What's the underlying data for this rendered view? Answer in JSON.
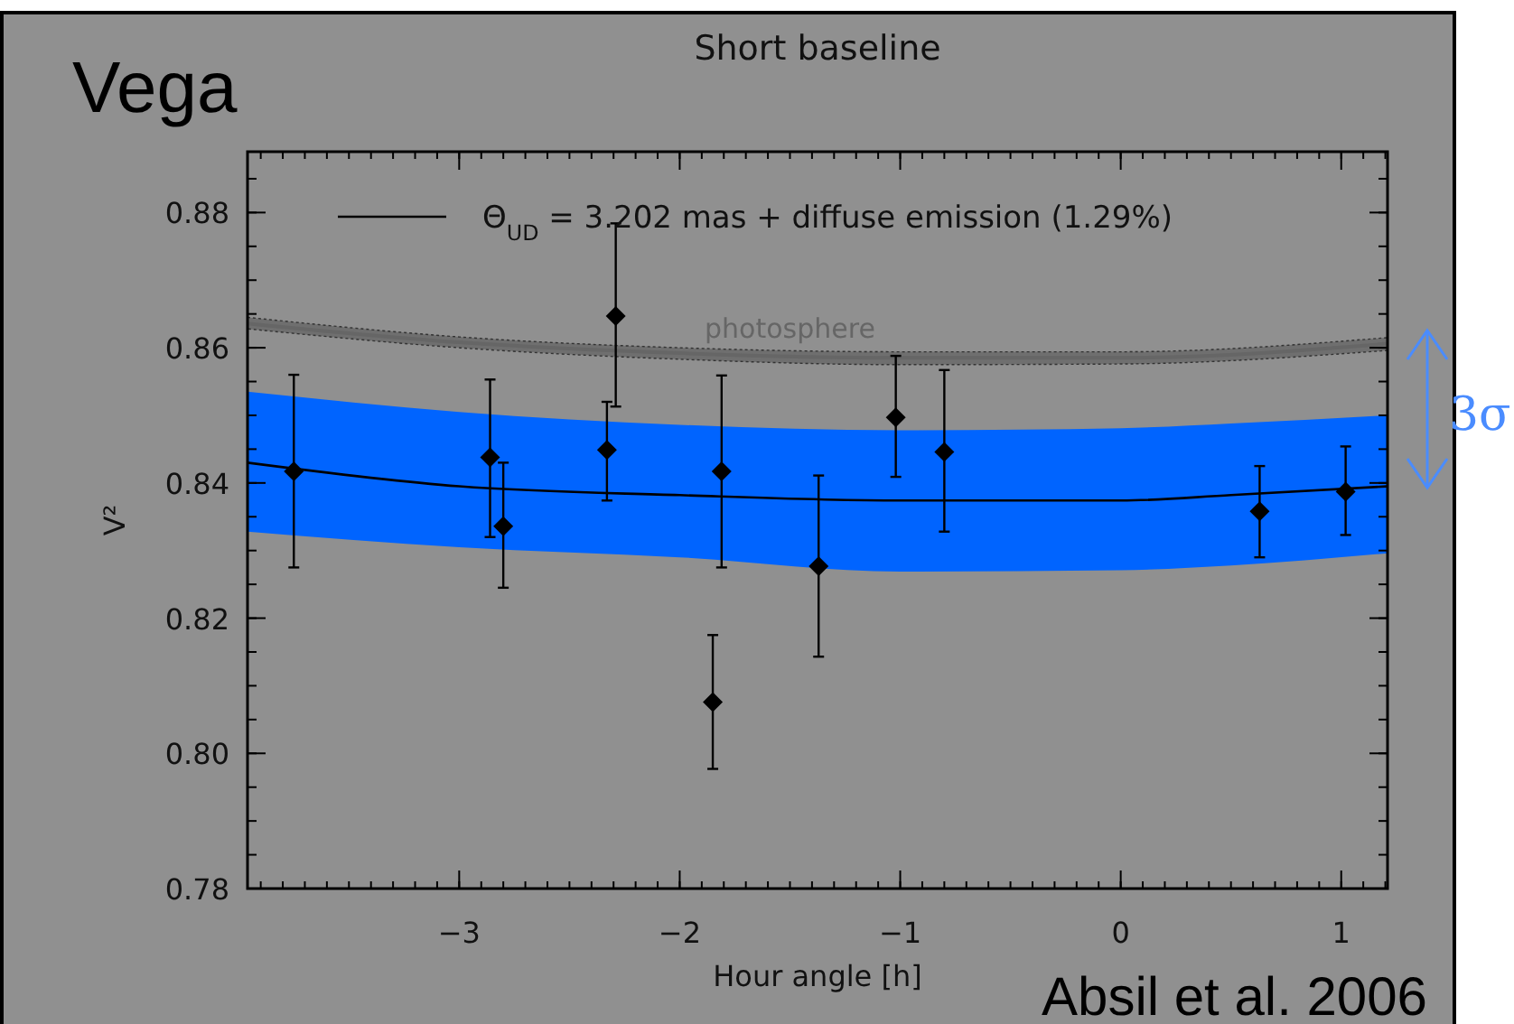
{
  "chart_data": {
    "type": "scatter",
    "title": "Short baseline",
    "xlabel": "Hour angle [h]",
    "ylabel": "V²",
    "xlim": [
      -3.96,
      1.21
    ],
    "ylim": [
      0.78,
      0.889
    ],
    "xticks": [
      {
        "value": -3,
        "label": "−3"
      },
      {
        "value": -2,
        "label": "−2"
      },
      {
        "value": -1,
        "label": "−1"
      },
      0,
      1
    ],
    "yticks": [
      {
        "value": 0.78,
        "label": "0.78"
      },
      {
        "value": 0.8,
        "label": "0.80"
      },
      {
        "value": 0.82,
        "label": "0.82"
      },
      {
        "value": 0.84,
        "label": "0.84"
      },
      {
        "value": 0.86,
        "label": "0.86"
      },
      {
        "value": 0.88,
        "label": "0.88"
      }
    ],
    "grid": false,
    "legend": "top",
    "annotations": [
      "Vega",
      "Absil et al. 2006",
      {
        "text": "3σ",
        "x": 1.21,
        "y": 0.851
      }
    ],
    "series": [
      {
        "type": "line",
        "name": "photosphere",
        "color": "#666666",
        "marker": "none",
        "x": [
          -3.96,
          -3,
          -2,
          -1,
          0,
          1.21
        ],
        "values": [
          0.8636,
          0.8608,
          0.8592,
          0.8585,
          0.8585,
          0.8606
        ],
        "lower": [
          0.8628,
          0.86,
          0.8583,
          0.8575,
          0.8576,
          0.8596
        ],
        "upper": [
          0.8645,
          0.8616,
          0.86,
          0.8594,
          0.8594,
          0.8615
        ]
      },
      {
        "type": "line",
        "name": "Θ$_{UD}$ = 3.202 mas + diffuse emission (1.29%)",
        "color": "#000000",
        "marker": "none",
        "x": [
          -3.96,
          -3,
          -2,
          -1,
          0,
          0.5,
          1.21
        ],
        "values": [
          0.843,
          0.8395,
          0.8382,
          0.8374,
          0.8374,
          0.8382,
          0.8395
        ],
        "lower": [
          0.8328,
          0.8305,
          0.829,
          0.8269,
          0.8271,
          0.8278,
          0.8296
        ],
        "upper": [
          0.8535,
          0.8505,
          0.8486,
          0.8478,
          0.8481,
          0.8488,
          0.85
        ]
      },
      {
        "color": "#000000",
        "marker": "diamond",
        "x": [
          -3.75,
          -2.86,
          -2.8,
          -2.33,
          -2.29,
          -1.85,
          -1.81,
          -1.37,
          -1.02,
          -0.8,
          0.63,
          1.02
        ],
        "values": [
          0.8417,
          0.8438,
          0.8336,
          0.8449,
          0.8647,
          0.8076,
          0.8417,
          0.8277,
          0.8497,
          0.8446,
          0.8358,
          0.8387
        ],
        "errors": [
          [
            0.8275,
            0.856
          ],
          [
            0.832,
            0.8553
          ],
          [
            0.8245,
            0.843
          ],
          [
            0.8374,
            0.852
          ],
          [
            0.8513,
            0.8784
          ],
          [
            0.7977,
            0.8175
          ],
          [
            0.8275,
            0.8559
          ],
          [
            0.8143,
            0.8411
          ],
          [
            0.8409,
            0.8588
          ],
          [
            0.8328,
            0.8567
          ],
          [
            0.829,
            0.8425
          ],
          [
            0.8323,
            0.8454
          ]
        ]
      }
    ]
  }
}
